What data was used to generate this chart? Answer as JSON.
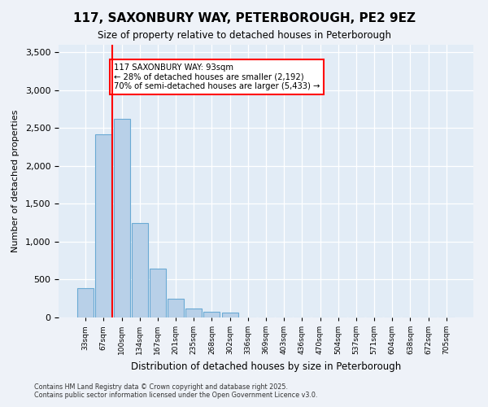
{
  "title": "117, SAXONBURY WAY, PETERBOROUGH, PE2 9EZ",
  "subtitle": "Size of property relative to detached houses in Peterborough",
  "xlabel": "Distribution of detached houses by size in Peterborough",
  "ylabel": "Number of detached properties",
  "categories": [
    "33sqm",
    "67sqm",
    "100sqm",
    "134sqm",
    "167sqm",
    "201sqm",
    "235sqm",
    "268sqm",
    "302sqm",
    "336sqm",
    "369sqm",
    "403sqm",
    "436sqm",
    "470sqm",
    "504sqm",
    "537sqm",
    "571sqm",
    "604sqm",
    "638sqm",
    "672sqm",
    "705sqm"
  ],
  "values": [
    390,
    2420,
    2620,
    1250,
    640,
    250,
    120,
    80,
    60,
    0,
    0,
    0,
    0,
    0,
    0,
    0,
    0,
    0,
    0,
    0,
    0
  ],
  "bar_color": "#b8d0e8",
  "bar_edge_color": "#6aaad4",
  "line_color": "red",
  "annotation_text": "117 SAXONBURY WAY: 93sqm\n← 28% of detached houses are smaller (2,192)\n70% of semi-detached houses are larger (5,433) →",
  "ylim": [
    0,
    3600
  ],
  "yticks": [
    0,
    500,
    1000,
    1500,
    2000,
    2500,
    3000,
    3500
  ],
  "footer": "Contains HM Land Registry data © Crown copyright and database right 2025.\nContains public sector information licensed under the Open Government Licence v3.0.",
  "bg_color": "#eef2f8",
  "plot_bg_color": "#e2ecf6"
}
